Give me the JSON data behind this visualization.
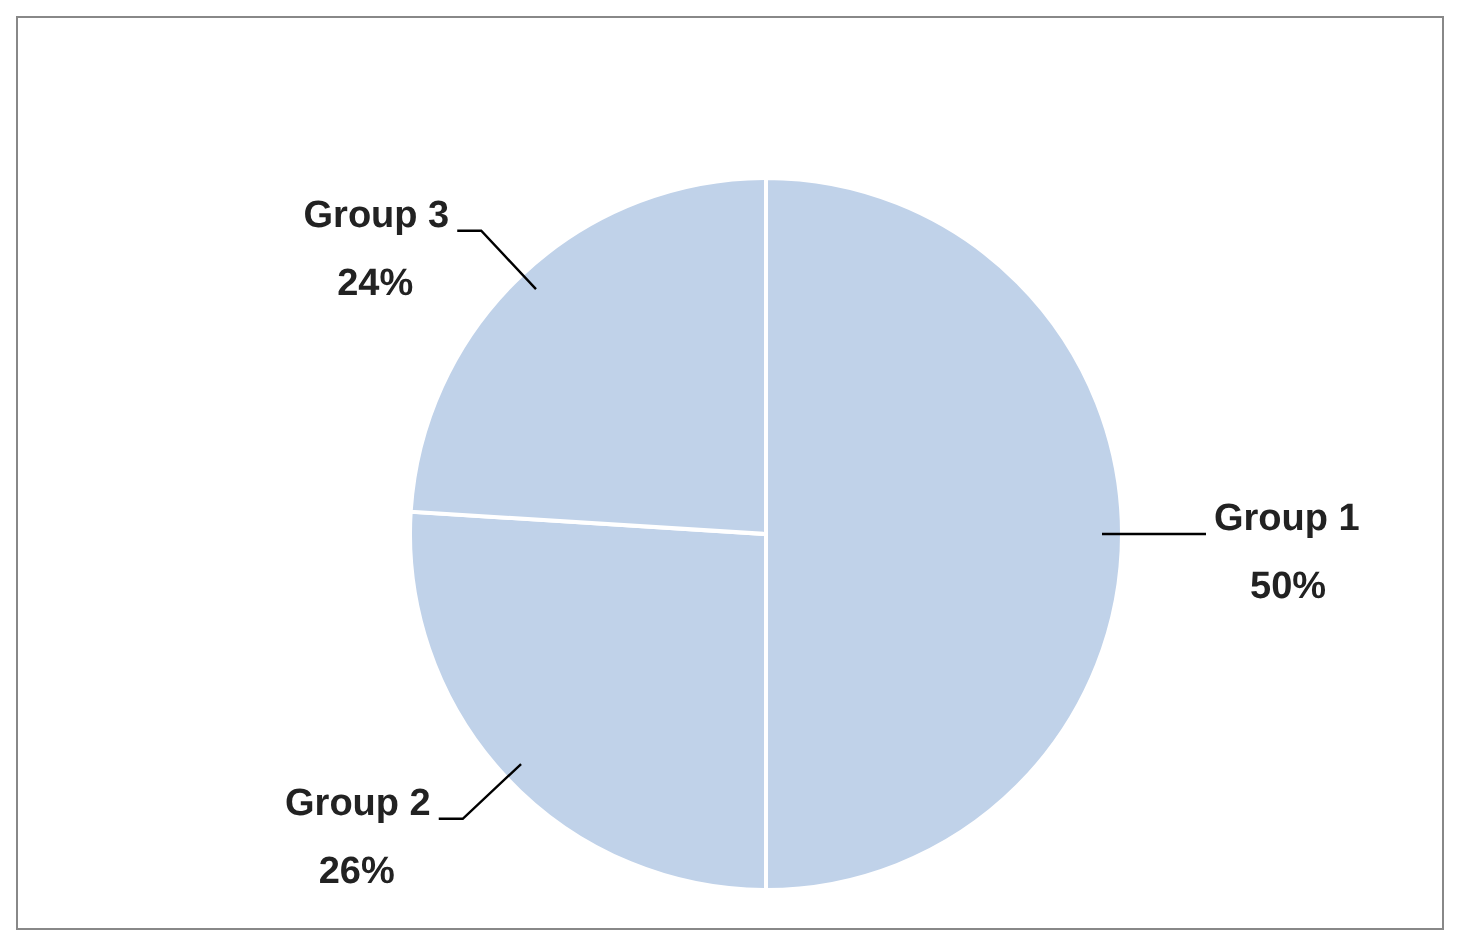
{
  "chart_data": {
    "type": "pie",
    "categories": [
      "Group 1",
      "Group 2",
      "Group 3"
    ],
    "values": [
      50,
      26,
      24
    ],
    "colors": [
      "#4a7ebf",
      "#4a7ebf",
      "#4a7ebf"
    ],
    "value_labels": [
      "50%",
      "26%",
      "24%"
    ]
  }
}
